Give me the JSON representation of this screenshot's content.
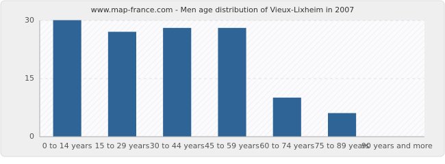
{
  "chart_data": {
    "type": "bar",
    "title": "www.map-france.com - Men age distribution of Vieux-Lixheim in 2007",
    "categories": [
      "0 to 14 years",
      "15 to 29 years",
      "30 to 44 years",
      "45 to 59 years",
      "60 to 74 years",
      "75 to 89 years",
      "90 years and more"
    ],
    "values": [
      30,
      27,
      28,
      28,
      10,
      6,
      0
    ],
    "color": "#2f6496",
    "ylim": [
      0,
      30
    ],
    "yticks": [
      0,
      15,
      30
    ],
    "grid": true
  }
}
